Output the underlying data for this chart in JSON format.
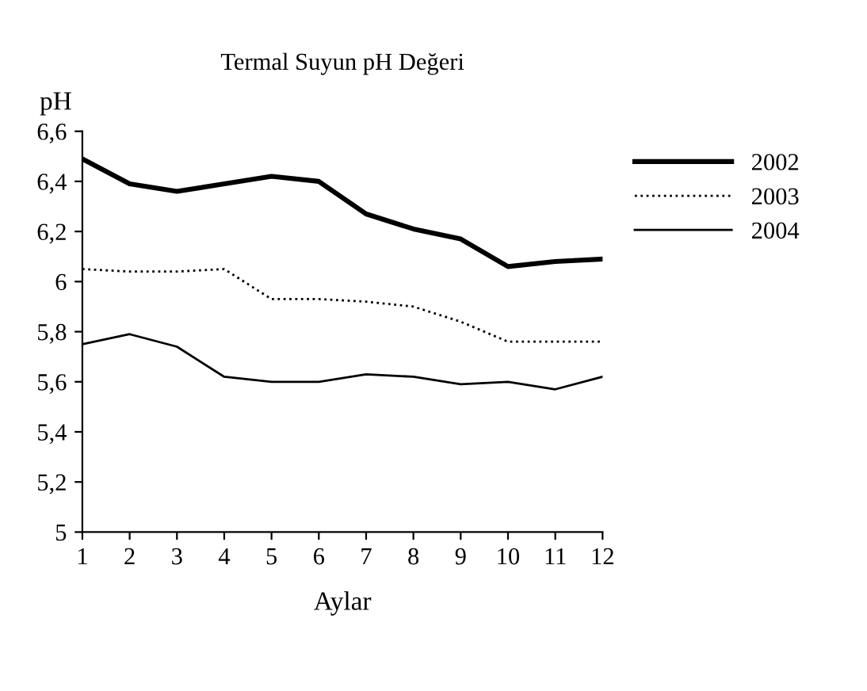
{
  "chart_data": {
    "type": "line",
    "title": "Termal Suyun pH Değeri",
    "xlabel": "Aylar",
    "ylabel": "pH",
    "x": [
      1,
      2,
      3,
      4,
      5,
      6,
      7,
      8,
      9,
      10,
      11,
      12
    ],
    "series": [
      {
        "name": "2002",
        "color": "#000000",
        "line_style": "solid",
        "values": [
          6.49,
          6.39,
          6.36,
          6.39,
          6.42,
          6.4,
          6.27,
          6.21,
          6.17,
          6.06,
          6.08,
          6.09
        ]
      },
      {
        "name": "2003",
        "color": "#000000",
        "line_style": "dotted",
        "values": [
          6.05,
          6.04,
          6.04,
          6.05,
          5.93,
          5.93,
          5.92,
          5.9,
          5.84,
          5.76,
          5.76,
          5.76
        ]
      },
      {
        "name": "2004",
        "color": "#000000",
        "line_style": "solid",
        "values": [
          5.75,
          5.79,
          5.74,
          5.62,
          5.6,
          5.6,
          5.63,
          5.62,
          5.59,
          5.6,
          5.57,
          5.62
        ]
      }
    ],
    "xlim": [
      1,
      12
    ],
    "xticks": [
      1,
      2,
      3,
      4,
      5,
      6,
      7,
      8,
      9,
      10,
      11,
      12
    ],
    "ylim": [
      5,
      6.6
    ],
    "yticks": [
      5,
      {
        "value": 5.2,
        "label": "5,2"
      },
      {
        "value": 5.4,
        "label": "5,4"
      },
      {
        "value": 5.6,
        "label": "5,6"
      },
      {
        "value": 5.8,
        "label": "5,8"
      },
      6,
      {
        "value": 6.2,
        "label": "6,2"
      },
      {
        "value": 6.4,
        "label": "6,4"
      },
      {
        "value": 6.6,
        "label": "6,6"
      }
    ],
    "grid": false,
    "legend": "right",
    "marker": "none"
  }
}
